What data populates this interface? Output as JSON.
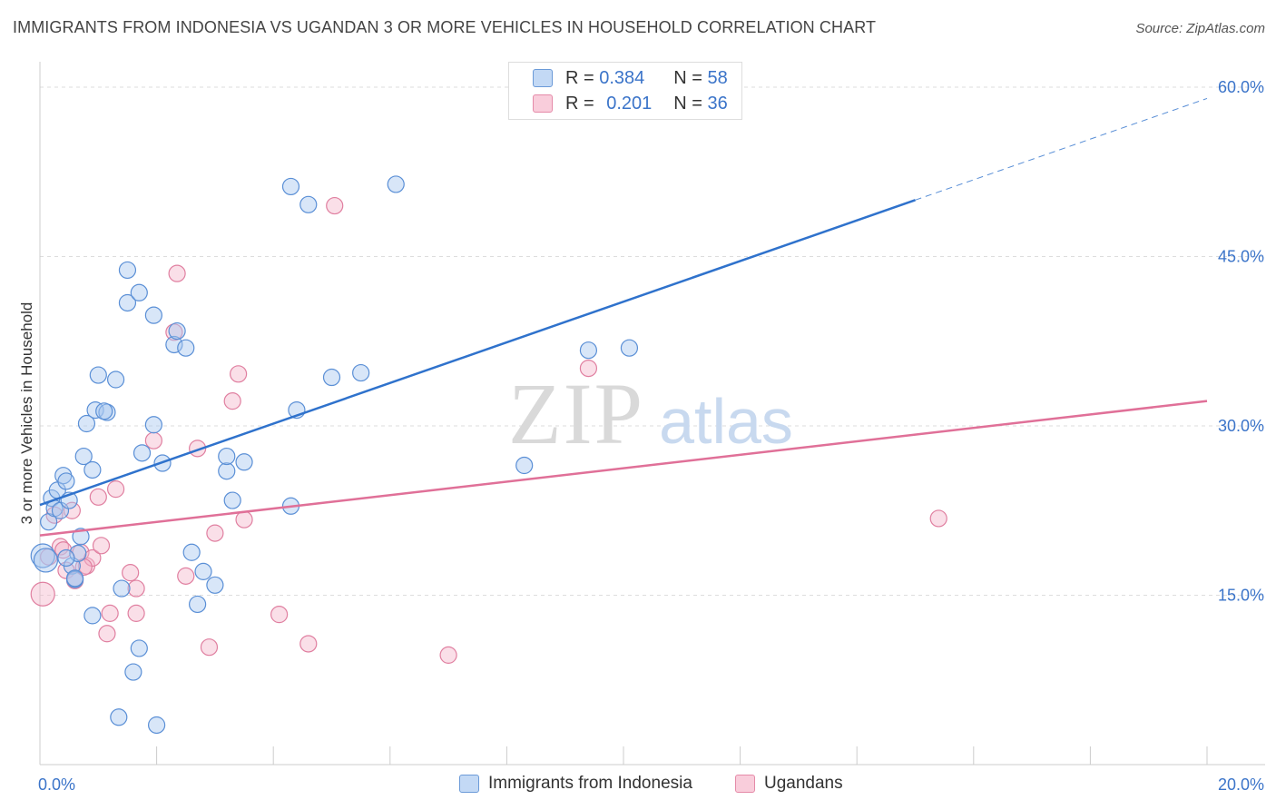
{
  "title": "IMMIGRANTS FROM INDONESIA VS UGANDAN 3 OR MORE VEHICLES IN HOUSEHOLD CORRELATION CHART",
  "source": "Source: ZipAtlas.com",
  "watermark": {
    "zip": "ZIP",
    "atlas": "atlas"
  },
  "legend": {
    "rows": [
      {
        "r_label": "R =",
        "r_value": "0.384",
        "n_label": "N =",
        "n_value": "58"
      },
      {
        "r_label": "R =",
        "r_value": "0.201",
        "n_label": "N =",
        "n_value": "36"
      }
    ]
  },
  "colors": {
    "blue_fill": "#a8c8f0",
    "blue_stroke": "#5a8fd6",
    "blue_line": "#2f72cc",
    "pink_fill": "#f5b8cb",
    "pink_stroke": "#e07fa0",
    "pink_line": "#e07098",
    "axis_text": "#3b74c9",
    "grid": "#dddddd"
  },
  "chart_data": {
    "type": "scatter",
    "title": "IMMIGRANTS FROM INDONESIA VS UGANDAN 3 OR MORE VEHICLES IN HOUSEHOLD CORRELATION CHART",
    "xlabel": "",
    "ylabel": "3 or more Vehicles in Household",
    "xlim": [
      0,
      20
    ],
    "ylim": [
      0,
      60
    ],
    "x_tick_labels": [
      "0.0%",
      "20.0%"
    ],
    "y_tick_labels": [
      "15.0%",
      "30.0%",
      "45.0%",
      "60.0%"
    ],
    "y_ticks": [
      15,
      30,
      45,
      60
    ],
    "grid": true,
    "legend_position": "top-center",
    "series": [
      {
        "name": "Immigrants from Indonesia",
        "color": "blue",
        "points": [
          [
            0.05,
            18.5
          ],
          [
            0.1,
            18.1
          ],
          [
            0.15,
            21.5
          ],
          [
            0.2,
            23.6
          ],
          [
            0.25,
            22.7
          ],
          [
            0.3,
            24.3
          ],
          [
            0.35,
            22.5
          ],
          [
            0.4,
            25.6
          ],
          [
            0.45,
            25.1
          ],
          [
            0.5,
            23.4
          ],
          [
            0.55,
            17.6
          ],
          [
            0.6,
            16.4
          ],
          [
            0.65,
            18.7
          ],
          [
            0.7,
            20.2
          ],
          [
            0.75,
            27.3
          ],
          [
            0.8,
            30.2
          ],
          [
            0.9,
            26.1
          ],
          [
            0.95,
            31.4
          ],
          [
            1.0,
            34.5
          ],
          [
            1.15,
            31.2
          ],
          [
            1.3,
            34.1
          ],
          [
            1.5,
            43.8
          ],
          [
            1.5,
            40.9
          ],
          [
            1.7,
            41.8
          ],
          [
            1.75,
            27.6
          ],
          [
            1.95,
            30.1
          ],
          [
            1.95,
            39.8
          ],
          [
            2.1,
            26.7
          ],
          [
            2.3,
            37.2
          ],
          [
            2.35,
            38.4
          ],
          [
            2.5,
            36.9
          ],
          [
            2.6,
            18.8
          ],
          [
            2.7,
            14.2
          ],
          [
            2.8,
            17.1
          ],
          [
            3.0,
            15.9
          ],
          [
            3.2,
            26.0
          ],
          [
            3.2,
            27.3
          ],
          [
            3.3,
            23.4
          ],
          [
            3.5,
            26.8
          ],
          [
            4.3,
            22.9
          ],
          [
            4.4,
            31.4
          ],
          [
            4.3,
            51.2
          ],
          [
            4.6,
            49.6
          ],
          [
            5.0,
            34.3
          ],
          [
            5.5,
            34.7
          ],
          [
            6.1,
            51.4
          ],
          [
            8.3,
            26.5
          ],
          [
            9.4,
            36.7
          ],
          [
            10.1,
            36.9
          ],
          [
            0.9,
            13.2
          ],
          [
            1.4,
            15.6
          ],
          [
            1.7,
            10.3
          ],
          [
            1.6,
            8.2
          ],
          [
            1.35,
            4.2
          ],
          [
            2.0,
            3.5
          ],
          [
            0.6,
            16.5
          ],
          [
            0.45,
            18.3
          ],
          [
            1.1,
            31.3
          ]
        ]
      },
      {
        "name": "Ugandans",
        "color": "pink",
        "points": [
          [
            0.05,
            15.1
          ],
          [
            0.15,
            18.4
          ],
          [
            0.25,
            22.1
          ],
          [
            0.35,
            19.3
          ],
          [
            0.45,
            17.2
          ],
          [
            0.55,
            22.5
          ],
          [
            0.6,
            16.3
          ],
          [
            0.7,
            18.8
          ],
          [
            0.8,
            17.6
          ],
          [
            0.9,
            18.3
          ],
          [
            1.0,
            23.7
          ],
          [
            1.05,
            19.4
          ],
          [
            1.15,
            11.6
          ],
          [
            1.2,
            13.4
          ],
          [
            1.3,
            24.4
          ],
          [
            1.55,
            17.0
          ],
          [
            1.65,
            15.6
          ],
          [
            1.95,
            28.7
          ],
          [
            2.3,
            38.3
          ],
          [
            2.35,
            43.5
          ],
          [
            2.5,
            16.7
          ],
          [
            2.7,
            28.0
          ],
          [
            2.9,
            10.4
          ],
          [
            3.0,
            20.5
          ],
          [
            3.3,
            32.2
          ],
          [
            3.4,
            34.6
          ],
          [
            3.5,
            21.7
          ],
          [
            4.1,
            13.3
          ],
          [
            4.6,
            10.7
          ],
          [
            5.05,
            49.5
          ],
          [
            7.0,
            9.7
          ],
          [
            9.4,
            35.1
          ],
          [
            15.4,
            21.8
          ],
          [
            0.75,
            17.5
          ],
          [
            1.65,
            13.4
          ],
          [
            0.4,
            19.0
          ]
        ]
      }
    ],
    "trendlines": [
      {
        "series": "Immigrants from Indonesia",
        "x": [
          0,
          15
        ],
        "y": [
          23.0,
          50.0
        ],
        "dashed_extension": {
          "x": [
            15,
            20
          ],
          "y": [
            50.0,
            59.0
          ]
        }
      },
      {
        "series": "Ugandans",
        "x": [
          0,
          20
        ],
        "y": [
          20.3,
          32.2
        ]
      }
    ]
  },
  "bottom_legend": {
    "items": [
      {
        "label": "Immigrants from Indonesia"
      },
      {
        "label": "Ugandans"
      }
    ]
  }
}
